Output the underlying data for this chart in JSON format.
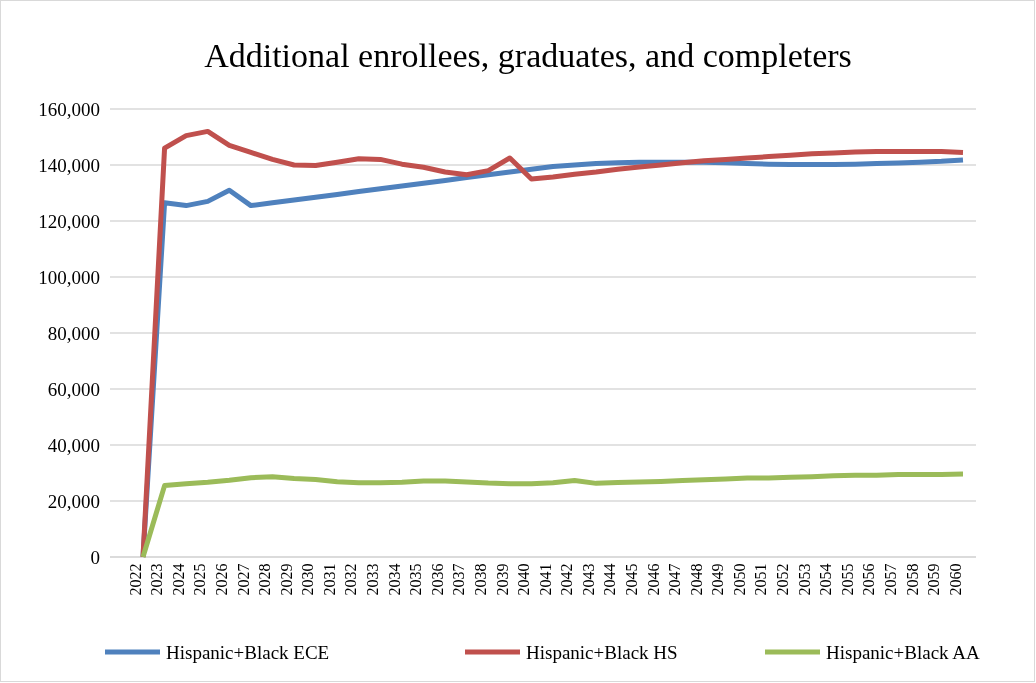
{
  "chart_data": {
    "type": "line",
    "title": "Additional enrollees, graduates, and completers",
    "categories": [
      "2022",
      "2023",
      "2024",
      "2025",
      "2026",
      "2027",
      "2028",
      "2029",
      "2030",
      "2031",
      "2032",
      "2033",
      "2034",
      "2035",
      "2036",
      "2037",
      "2038",
      "2039",
      "2040",
      "2041",
      "2042",
      "2043",
      "2044",
      "2045",
      "2046",
      "2047",
      "2048",
      "2049",
      "2050",
      "2051",
      "2052",
      "2053",
      "2054",
      "2055",
      "2056",
      "2057",
      "2058",
      "2059",
      "2060"
    ],
    "series": [
      {
        "name": "Hispanic+Black ECE",
        "color": "#4f81bd",
        "values": [
          0,
          126500,
          125500,
          127000,
          131000,
          125500,
          126500,
          127500,
          128500,
          129500,
          130500,
          131500,
          132500,
          133500,
          134500,
          135500,
          136500,
          137500,
          138500,
          139500,
          140000,
          140500,
          140800,
          141000,
          141000,
          141000,
          141000,
          140800,
          140500,
          140300,
          140200,
          140200,
          140200,
          140300,
          140500,
          140700,
          141000,
          141300,
          141800
        ]
      },
      {
        "name": "Hispanic+Black HS",
        "color": "#c0504d",
        "values": [
          0,
          146000,
          150500,
          152000,
          147000,
          144500,
          142000,
          140000,
          139800,
          141000,
          142200,
          142000,
          140300,
          139200,
          137500,
          136500,
          138000,
          142500,
          135000,
          135700,
          136700,
          137500,
          138500,
          139300,
          140000,
          140800,
          141500,
          142000,
          142500,
          143000,
          143500,
          144000,
          144300,
          144600,
          144800,
          144800,
          144800,
          144800,
          144500
        ]
      },
      {
        "name": "Hispanic+Black AA",
        "color": "#9bbb59",
        "values": [
          0,
          25500,
          26200,
          26700,
          27400,
          28300,
          28700,
          28000,
          27700,
          26900,
          26500,
          26500,
          26700,
          27100,
          27100,
          26800,
          26400,
          26200,
          26200,
          26500,
          27300,
          26300,
          26600,
          26800,
          27000,
          27300,
          27600,
          27900,
          28200,
          28200,
          28500,
          28700,
          29000,
          29200,
          29200,
          29500,
          29500,
          29500,
          29600
        ]
      }
    ],
    "ylim": [
      0,
      160000
    ],
    "yticks": [
      {
        "value": 0,
        "label": "0"
      },
      {
        "value": 20000,
        "label": "20,000"
      },
      {
        "value": 40000,
        "label": "40,000"
      },
      {
        "value": 60000,
        "label": "60,000"
      },
      {
        "value": 80000,
        "label": "80,000"
      },
      {
        "value": 100000,
        "label": "100,000"
      },
      {
        "value": 120000,
        "label": "120,000"
      },
      {
        "value": 140000,
        "label": "140,000"
      },
      {
        "value": 160000,
        "label": "160,000"
      }
    ],
    "grid": "y",
    "legend": "bottom",
    "marker": "none",
    "line_style": "solid"
  }
}
